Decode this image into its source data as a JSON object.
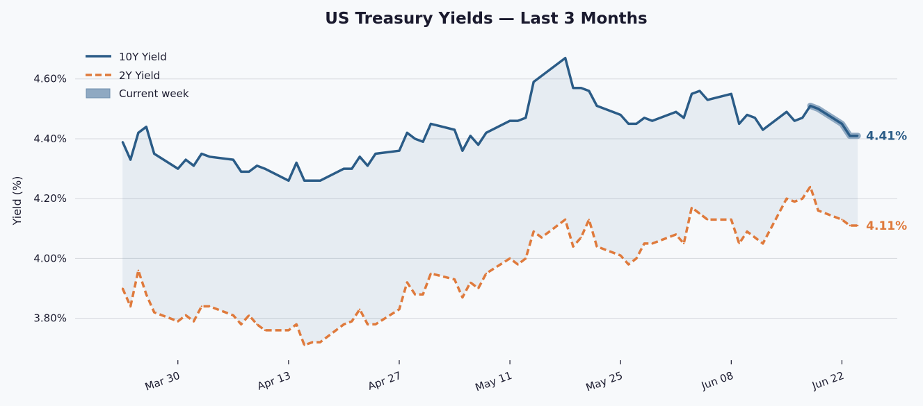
{
  "chart_data": {
    "type": "line",
    "title": "US Treasury Yields — Last 3 Months",
    "xlabel": "",
    "ylabel": "Yield (%)",
    "x_range": [
      "2026-03-17",
      "2026-06-29"
    ],
    "ylim": [
      3.66,
      4.72
    ],
    "yticks": [
      3.8,
      4.0,
      4.2,
      4.4,
      4.6
    ],
    "ytick_labels": [
      "3.80%",
      "4.00%",
      "4.20%",
      "4.40%",
      "4.60%"
    ],
    "xticks": [
      "2026-03-30",
      "2026-04-13",
      "2026-04-27",
      "2026-05-11",
      "2026-05-25",
      "2026-06-08",
      "2026-06-22"
    ],
    "xtick_labels": [
      "Mar 30",
      "Apr 13",
      "Apr 27",
      "May 11",
      "May 25",
      "Jun 08",
      "Jun 22"
    ],
    "grid": "horizontal",
    "legend_position": "top-left",
    "legend": [
      "10Y Yield",
      "2Y Yield",
      "Current week"
    ],
    "dates": [
      "2026-03-23",
      "2026-03-24",
      "2026-03-25",
      "2026-03-26",
      "2026-03-27",
      "2026-03-30",
      "2026-03-31",
      "2026-04-01",
      "2026-04-02",
      "2026-04-03",
      "2026-04-06",
      "2026-04-07",
      "2026-04-08",
      "2026-04-09",
      "2026-04-10",
      "2026-04-13",
      "2026-04-14",
      "2026-04-15",
      "2026-04-16",
      "2026-04-17",
      "2026-04-20",
      "2026-04-21",
      "2026-04-22",
      "2026-04-23",
      "2026-04-24",
      "2026-04-27",
      "2026-04-28",
      "2026-04-29",
      "2026-04-30",
      "2026-05-01",
      "2026-05-04",
      "2026-05-05",
      "2026-05-06",
      "2026-05-07",
      "2026-05-08",
      "2026-05-11",
      "2026-05-12",
      "2026-05-13",
      "2026-05-14",
      "2026-05-15",
      "2026-05-18",
      "2026-05-19",
      "2026-05-20",
      "2026-05-21",
      "2026-05-22",
      "2026-05-25",
      "2026-05-26",
      "2026-05-27",
      "2026-05-28",
      "2026-05-29",
      "2026-06-01",
      "2026-06-02",
      "2026-06-03",
      "2026-06-04",
      "2026-06-05",
      "2026-06-08",
      "2026-06-09",
      "2026-06-10",
      "2026-06-11",
      "2026-06-12",
      "2026-06-15",
      "2026-06-16",
      "2026-06-17",
      "2026-06-18",
      "2026-06-19",
      "2026-06-22",
      "2026-06-23",
      "2026-06-24"
    ],
    "series": [
      {
        "name": "10Y Yield",
        "color": "#2b5c87",
        "style": "solid",
        "values": [
          4.39,
          4.33,
          4.42,
          4.44,
          4.35,
          4.3,
          4.33,
          4.31,
          4.35,
          4.34,
          4.33,
          4.29,
          4.29,
          4.31,
          4.3,
          4.26,
          4.32,
          4.26,
          4.26,
          4.26,
          4.3,
          4.3,
          4.34,
          4.31,
          4.35,
          4.36,
          4.42,
          4.4,
          4.39,
          4.45,
          4.43,
          4.36,
          4.41,
          4.38,
          4.42,
          4.46,
          4.46,
          4.47,
          4.59,
          4.61,
          4.67,
          4.57,
          4.57,
          4.56,
          4.51,
          4.48,
          4.45,
          4.45,
          4.47,
          4.46,
          4.49,
          4.47,
          4.55,
          4.56,
          4.53,
          4.55,
          4.45,
          4.48,
          4.47,
          4.43,
          4.49,
          4.46,
          4.47,
          4.51,
          4.5,
          4.45,
          4.41,
          4.41
        ],
        "end_label": "4.41%"
      },
      {
        "name": "2Y Yield",
        "color": "#df7a3c",
        "style": "dashed",
        "values": [
          3.9,
          3.84,
          3.96,
          3.88,
          3.82,
          3.79,
          3.81,
          3.79,
          3.84,
          3.84,
          3.81,
          3.78,
          3.81,
          3.78,
          3.76,
          3.76,
          3.78,
          3.71,
          3.72,
          3.72,
          3.78,
          3.79,
          3.83,
          3.78,
          3.78,
          3.83,
          3.92,
          3.88,
          3.88,
          3.95,
          3.93,
          3.87,
          3.92,
          3.9,
          3.95,
          4.0,
          3.98,
          4.0,
          4.09,
          4.07,
          4.13,
          4.04,
          4.07,
          4.13,
          4.04,
          4.01,
          3.98,
          4.0,
          4.05,
          4.05,
          4.08,
          4.05,
          4.17,
          4.15,
          4.13,
          4.13,
          4.05,
          4.09,
          4.07,
          4.05,
          4.2,
          4.19,
          4.2,
          4.24,
          4.16,
          4.13,
          4.11,
          4.11
        ],
        "end_label": "4.11%"
      }
    ],
    "highlight": {
      "name": "Current week",
      "series": "10Y Yield",
      "start": "2026-06-18",
      "end": "2026-06-24",
      "color": "#8fa9c2"
    }
  },
  "colors": {
    "background": "#f7f9fb",
    "band_fill": "#2b5c87",
    "grid": "#d5d8dd",
    "text": "#1a1a2e"
  }
}
